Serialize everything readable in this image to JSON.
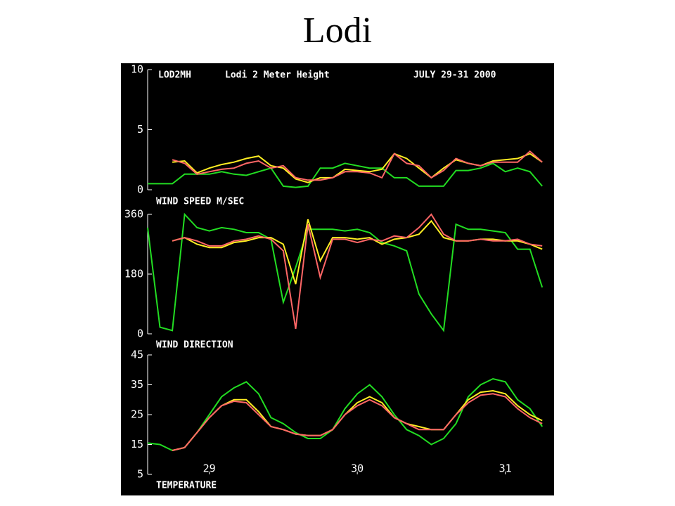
{
  "title": "Lodi",
  "chart_data": [
    {
      "type": "line",
      "title": "WIND SPEED M/SEC",
      "annotations": [
        "LOD2MH",
        "Lodi 2 Meter Height",
        "JULY 29-31 2000"
      ],
      "x": [
        2,
        4,
        6,
        8,
        10,
        12,
        14,
        16,
        18,
        20,
        22,
        24,
        26,
        28,
        30,
        32,
        34,
        36,
        38,
        40,
        42,
        44,
        46,
        48,
        50,
        52,
        54,
        56,
        58,
        60,
        62,
        64,
        66
      ],
      "xlim": [
        2,
        67
      ],
      "ylim": [
        0,
        10
      ],
      "yticks": [
        0,
        5,
        10
      ],
      "series": [
        {
          "color": "#22dd22",
          "values": [
            0.5,
            0.5,
            0.5,
            1.3,
            1.3,
            1.3,
            1.5,
            1.3,
            1.2,
            1.5,
            1.8,
            0.3,
            0.2,
            0.3,
            1.8,
            1.8,
            2.2,
            2.0,
            1.8,
            1.8,
            1.0,
            1.0,
            0.3,
            0.3,
            0.3,
            1.6,
            1.6,
            1.8,
            2.2,
            1.5,
            1.8,
            1.5,
            0.3
          ]
        },
        {
          "color": "#ffee22",
          "values": [
            null,
            null,
            2.3,
            2.4,
            1.4,
            1.8,
            2.1,
            2.3,
            2.6,
            2.8,
            2.0,
            1.8,
            0.9,
            0.6,
            1.0,
            1.0,
            1.7,
            1.6,
            1.5,
            1.7,
            3.0,
            2.6,
            1.8,
            1.0,
            1.8,
            2.5,
            2.2,
            2.0,
            2.4,
            2.5,
            2.6,
            3.0,
            2.3
          ]
        },
        {
          "color": "#ff6666",
          "values": [
            null,
            null,
            2.5,
            2.2,
            1.3,
            1.5,
            1.7,
            1.8,
            2.2,
            2.4,
            1.8,
            2.0,
            1.0,
            0.8,
            0.8,
            1.0,
            1.5,
            1.5,
            1.4,
            1.0,
            3.0,
            2.2,
            2.0,
            1.0,
            1.6,
            2.6,
            2.2,
            2.0,
            2.3,
            2.3,
            2.3,
            3.2,
            2.3
          ]
        }
      ]
    },
    {
      "type": "line",
      "title": "WIND DIRECTION",
      "x": [
        2,
        4,
        6,
        8,
        10,
        12,
        14,
        16,
        18,
        20,
        22,
        24,
        26,
        28,
        30,
        32,
        34,
        36,
        38,
        40,
        42,
        44,
        46,
        48,
        50,
        52,
        54,
        56,
        58,
        60,
        62,
        64,
        66
      ],
      "xlim": [
        2,
        67
      ],
      "ylim": [
        0,
        360
      ],
      "yticks": [
        0,
        180,
        360
      ],
      "series": [
        {
          "color": "#22dd22",
          "values": [
            320,
            20,
            10,
            360,
            320,
            310,
            320,
            315,
            305,
            305,
            285,
            95,
            200,
            315,
            315,
            315,
            310,
            315,
            305,
            275,
            265,
            250,
            120,
            60,
            10,
            330,
            315,
            315,
            310,
            305,
            255,
            255,
            140
          ]
        },
        {
          "color": "#ffee22",
          "values": [
            null,
            null,
            280,
            290,
            270,
            260,
            260,
            275,
            280,
            290,
            290,
            270,
            150,
            345,
            220,
            290,
            290,
            285,
            290,
            270,
            285,
            290,
            300,
            340,
            290,
            280,
            280,
            285,
            285,
            280,
            280,
            270,
            255
          ]
        },
        {
          "color": "#ff6666",
          "values": [
            null,
            null,
            280,
            290,
            280,
            265,
            265,
            280,
            285,
            295,
            285,
            250,
            15,
            330,
            170,
            285,
            285,
            275,
            285,
            280,
            295,
            290,
            320,
            360,
            300,
            280,
            280,
            285,
            280,
            280,
            285,
            270,
            265
          ]
        }
      ]
    },
    {
      "type": "line",
      "title": "TEMPERATURE",
      "x": [
        2,
        4,
        6,
        8,
        10,
        12,
        14,
        16,
        18,
        20,
        22,
        24,
        26,
        28,
        30,
        32,
        34,
        36,
        38,
        40,
        42,
        44,
        46,
        48,
        50,
        52,
        54,
        56,
        58,
        60,
        62,
        64,
        66
      ],
      "xlim": [
        2,
        67
      ],
      "ylim": [
        5,
        45
      ],
      "yticks": [
        5,
        15,
        25,
        35,
        45
      ],
      "xticks": [
        {
          "value": 12,
          "label": "29"
        },
        {
          "value": 36,
          "label": "30"
        },
        {
          "value": 60,
          "label": "31"
        }
      ],
      "series": [
        {
          "color": "#22dd22",
          "values": [
            15.5,
            15,
            13,
            14,
            19,
            25,
            31,
            34,
            36,
            32,
            24,
            22,
            19,
            17,
            17,
            20,
            27,
            32,
            35,
            31,
            25,
            20,
            18,
            15,
            17,
            22,
            31,
            35,
            37,
            36,
            30,
            27,
            21
          ]
        },
        {
          "color": "#ffee22",
          "values": [
            null,
            null,
            13,
            14,
            19,
            24,
            28,
            30,
            30,
            26,
            21,
            20,
            18.5,
            18,
            18,
            20,
            25,
            29,
            31,
            29,
            24,
            22,
            21,
            20,
            20,
            25,
            30,
            32.5,
            33,
            32,
            28,
            25,
            23
          ]
        },
        {
          "color": "#ff6666",
          "values": [
            null,
            null,
            13,
            14,
            19,
            24,
            28,
            29.5,
            29,
            25,
            21,
            20,
            18.5,
            18,
            18,
            20,
            25,
            28,
            30,
            28,
            24,
            22,
            20,
            20,
            20,
            25,
            29,
            31.5,
            32,
            31,
            27,
            24,
            22
          ]
        }
      ]
    }
  ]
}
